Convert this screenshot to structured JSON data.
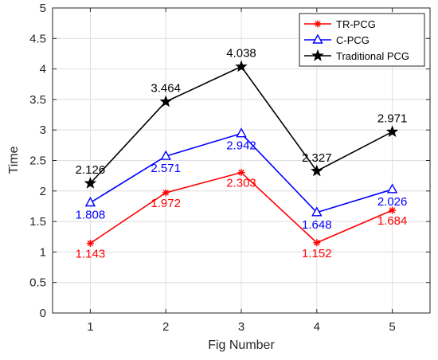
{
  "chart_data": {
    "type": "line",
    "xlabel": "Fig Number",
    "ylabel": "Time",
    "x": [
      1,
      2,
      3,
      4,
      5
    ],
    "xlim": [
      0.5,
      5.5
    ],
    "ylim": [
      0,
      5
    ],
    "xticks": [
      "1",
      "2",
      "3",
      "4",
      "5"
    ],
    "yticks": [
      "0",
      "0.5",
      "1",
      "1.5",
      "2",
      "2.5",
      "3",
      "3.5",
      "4",
      "4.5",
      "5"
    ],
    "grid": true,
    "legend_position": "top-right",
    "series": [
      {
        "name": "TR-PCG",
        "color": "#ff0000",
        "marker": "asterisk",
        "values": [
          1.143,
          1.972,
          2.303,
          1.152,
          1.684
        ],
        "labels": [
          "1.143",
          "1.972",
          "2.303",
          "1.152",
          "1.684"
        ]
      },
      {
        "name": "C-PCG",
        "color": "#0000ff",
        "marker": "triangle",
        "values": [
          1.808,
          2.571,
          2.942,
          1.648,
          2.026
        ],
        "labels": [
          "1.808",
          "2.571",
          "2.942",
          "1.648",
          "2.026"
        ]
      },
      {
        "name": "Traditional PCG",
        "color": "#000000",
        "marker": "star",
        "values": [
          2.126,
          3.464,
          4.038,
          2.327,
          2.971
        ],
        "labels": [
          "2.126",
          "3.464",
          "4.038",
          "2.327",
          "2.971"
        ]
      }
    ]
  }
}
